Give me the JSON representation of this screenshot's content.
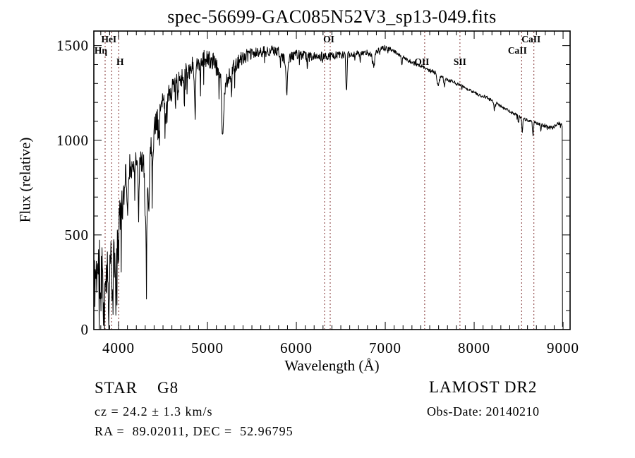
{
  "title": "spec-56699-GAC085N52V3_sp13-049.fits",
  "colors": {
    "background": "#ffffff",
    "axis": "#000000",
    "trace": "#000000",
    "marker_line": "#7f2f2f",
    "text": "#000000"
  },
  "footer": {
    "class_label": "STAR",
    "subclass": "G8",
    "cz_line": "cz = 24.2 ± 1.3 km/s",
    "radec_line": "RA =  89.02011, DEC =  52.96795",
    "survey": "LAMOST DR2",
    "obsdate_line": "Obs-Date: 20140210"
  },
  "chart_data": {
    "type": "line",
    "title": "spec-56699-GAC085N52V3_sp13-049.fits",
    "xlabel": "Wavelength (Å)",
    "ylabel": "Flux (relative)",
    "xlim": [
      3722,
      9079
    ],
    "ylim": [
      0,
      1577
    ],
    "grid": false,
    "x_major_ticks": [
      4000,
      5000,
      6000,
      7000,
      8000,
      9000
    ],
    "x_minor_step": 100,
    "y_major_ticks": [
      0,
      500,
      1000,
      1500
    ],
    "y_minor_step": 100,
    "line_markers": [
      {
        "label": "Hη",
        "wavelength": 3849,
        "row": 2,
        "dx": -6
      },
      {
        "label": "HeI",
        "wavelength": 3923,
        "row": 1,
        "dx": -4
      },
      {
        "label": "H",
        "wavelength": 4002,
        "row": 3,
        "dx": 2
      },
      {
        "label": "",
        "wavelength": 6317,
        "row": 0,
        "dx": 0
      },
      {
        "label": "OI",
        "wavelength": 6381,
        "row": 1,
        "dx": -2
      },
      {
        "label": "OII",
        "wavelength": 7443,
        "row": 3,
        "dx": -4
      },
      {
        "label": "SII",
        "wavelength": 7840,
        "row": 3,
        "dx": 0
      },
      {
        "label": "CaII",
        "wavelength": 8534,
        "row": 2,
        "dx": -6
      },
      {
        "label": "CaII",
        "wavelength": 8672,
        "row": 1,
        "dx": -4
      }
    ],
    "spectrum": {
      "seed": 11,
      "sample_step": 4,
      "envelope": [
        [
          3722,
          210
        ],
        [
          3740,
          290
        ],
        [
          3770,
          320
        ],
        [
          3800,
          330
        ],
        [
          3830,
          320
        ],
        [
          3860,
          300
        ],
        [
          3900,
          340
        ],
        [
          3940,
          390
        ],
        [
          3975,
          420
        ],
        [
          4000,
          480
        ],
        [
          4020,
          640
        ],
        [
          4050,
          780
        ],
        [
          4090,
          840
        ],
        [
          4150,
          880
        ],
        [
          4220,
          890
        ],
        [
          4280,
          880
        ],
        [
          4320,
          850
        ],
        [
          4360,
          950
        ],
        [
          4420,
          1100
        ],
        [
          4480,
          1180
        ],
        [
          4550,
          1230
        ],
        [
          4620,
          1280
        ],
        [
          4700,
          1330
        ],
        [
          4780,
          1370
        ],
        [
          4860,
          1400
        ],
        [
          4930,
          1430
        ],
        [
          5000,
          1430
        ],
        [
          5080,
          1410
        ],
        [
          5150,
          1330
        ],
        [
          5172,
          1200
        ],
        [
          5200,
          1290
        ],
        [
          5250,
          1360
        ],
        [
          5320,
          1400
        ],
        [
          5400,
          1440
        ],
        [
          5500,
          1455
        ],
        [
          5600,
          1465
        ],
        [
          5700,
          1475
        ],
        [
          5800,
          1465
        ],
        [
          5870,
          1420
        ],
        [
          5893,
          1350
        ],
        [
          5920,
          1430
        ],
        [
          5980,
          1455
        ],
        [
          6050,
          1450
        ],
        [
          6150,
          1445
        ],
        [
          6250,
          1445
        ],
        [
          6350,
          1440
        ],
        [
          6450,
          1450
        ],
        [
          6530,
          1450
        ],
        [
          6620,
          1455
        ],
        [
          6700,
          1460
        ],
        [
          6780,
          1465
        ],
        [
          6860,
          1450
        ],
        [
          6940,
          1480
        ],
        [
          7000,
          1490
        ],
        [
          7060,
          1480
        ],
        [
          7150,
          1455
        ],
        [
          7250,
          1425
        ],
        [
          7350,
          1400
        ],
        [
          7450,
          1380
        ],
        [
          7550,
          1360
        ],
        [
          7650,
          1330
        ],
        [
          7750,
          1310
        ],
        [
          7850,
          1290
        ],
        [
          7950,
          1265
        ],
        [
          8050,
          1240
        ],
        [
          8150,
          1225
        ],
        [
          8250,
          1195
        ],
        [
          8350,
          1165
        ],
        [
          8450,
          1140
        ],
        [
          8530,
          1120
        ],
        [
          8600,
          1105
        ],
        [
          8700,
          1090
        ],
        [
          8780,
          1080
        ],
        [
          8850,
          1065
        ],
        [
          8900,
          1070
        ],
        [
          8950,
          1090
        ],
        [
          8990,
          1080
        ],
        [
          8993,
          1070
        ],
        [
          8994,
          15
        ],
        [
          8996,
          12
        ]
      ],
      "noise": [
        [
          3722,
          170
        ],
        [
          3800,
          162
        ],
        [
          3870,
          150
        ],
        [
          3950,
          135
        ],
        [
          4010,
          110
        ],
        [
          4080,
          75
        ],
        [
          4160,
          60
        ],
        [
          4260,
          65
        ],
        [
          4380,
          65
        ],
        [
          4500,
          60
        ],
        [
          4640,
          55
        ],
        [
          4780,
          55
        ],
        [
          4920,
          50
        ],
        [
          5060,
          48
        ],
        [
          5200,
          45
        ],
        [
          5350,
          38
        ],
        [
          5500,
          33
        ],
        [
          5700,
          30
        ],
        [
          5900,
          28
        ],
        [
          6100,
          25
        ],
        [
          6300,
          23
        ],
        [
          6500,
          20
        ],
        [
          6700,
          17
        ],
        [
          6900,
          14
        ],
        [
          7100,
          12
        ],
        [
          7300,
          11
        ],
        [
          7600,
          10
        ],
        [
          7900,
          9
        ],
        [
          8200,
          9
        ],
        [
          8500,
          8
        ],
        [
          8700,
          9
        ],
        [
          8900,
          11
        ],
        [
          8996,
          6
        ]
      ],
      "absorption_dips": [
        [
          3798,
          5,
          160
        ],
        [
          3835,
          6,
          220
        ],
        [
          3889,
          6,
          200
        ],
        [
          3934,
          6,
          260
        ],
        [
          3969,
          6,
          240
        ],
        [
          4045,
          4,
          160
        ],
        [
          4101,
          6,
          280
        ],
        [
          4144,
          4,
          140
        ],
        [
          4226,
          5,
          260
        ],
        [
          4310,
          11,
          390
        ],
        [
          4340,
          6,
          260
        ],
        [
          4383,
          5,
          200
        ],
        [
          4455,
          4,
          150
        ],
        [
          4531,
          4,
          120
        ],
        [
          4668,
          4,
          110
        ],
        [
          4861,
          6,
          280
        ],
        [
          4920,
          4,
          120
        ],
        [
          5172,
          8,
          220
        ],
        [
          5270,
          5,
          110
        ],
        [
          5893,
          7,
          110
        ],
        [
          6122,
          4,
          60
        ],
        [
          6300,
          3,
          40
        ],
        [
          6563,
          6,
          195
        ],
        [
          6717,
          4,
          50
        ],
        [
          6870,
          9,
          70
        ],
        [
          7186,
          6,
          40
        ],
        [
          7594,
          10,
          60
        ],
        [
          7665,
          6,
          40
        ],
        [
          8227,
          5,
          45
        ],
        [
          8498,
          4,
          40
        ],
        [
          8542,
          5,
          75
        ],
        [
          8662,
          5,
          70
        ],
        [
          8750,
          4,
          35
        ]
      ],
      "spike_prob": [
        [
          4400,
          0.07,
          1.9
        ],
        [
          5600,
          0.05,
          1.2
        ],
        [
          9100,
          0.03,
          0.9
        ]
      ]
    }
  }
}
